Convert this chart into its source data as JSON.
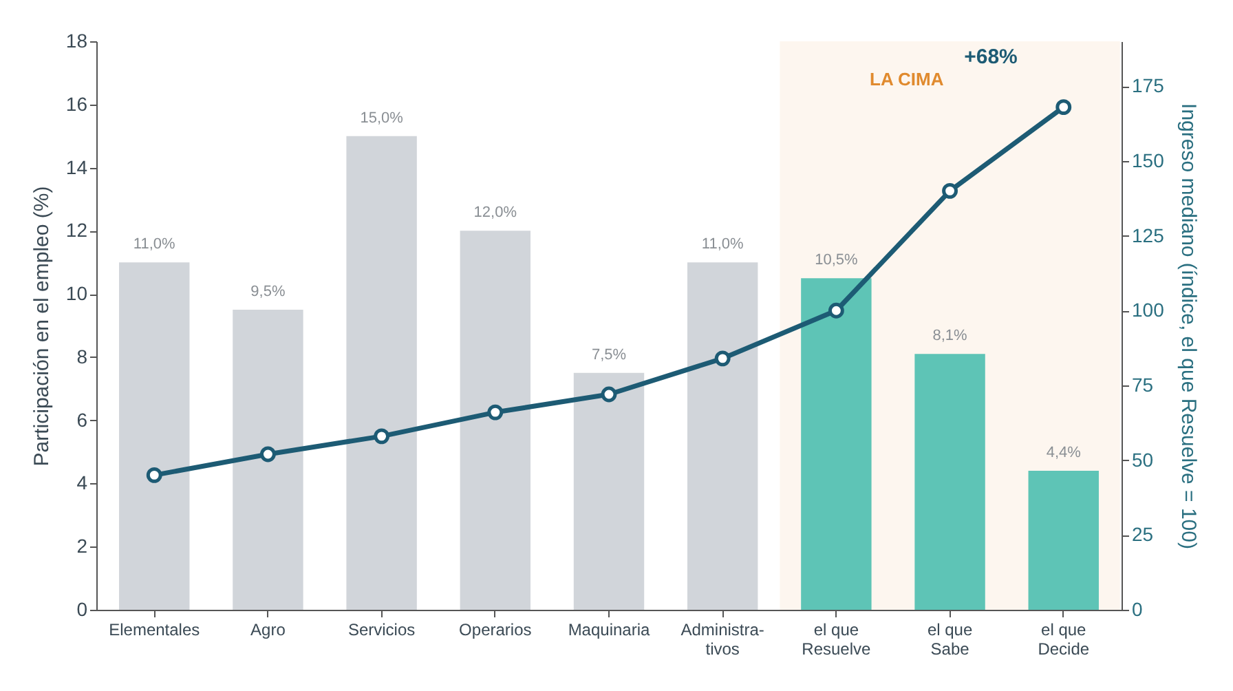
{
  "chart_data": {
    "type": "bar",
    "categories": [
      "Elementales",
      "Agro",
      "Servicios",
      "Operarios",
      "Maquinaria",
      "Administra-\ntivos",
      "el que\nResuelve",
      "el que\nSabe",
      "el que\nDecide"
    ],
    "ylabel": "Participación en el empleo (%)",
    "y2label": "Ingreso mediano (índice, el que Resuelve = 100)",
    "series": [
      {
        "values": [
          11.0,
          9.5,
          15.0,
          12.0,
          7.5,
          11.0,
          10.5,
          8.1,
          4.4
        ],
        "colors": [
          "#d1d5da",
          "#d1d5da",
          "#d1d5da",
          "#d1d5da",
          "#d1d5da",
          "#d1d5da",
          "#5ec4b6",
          "#5ec4b6",
          "#5ec4b6"
        ],
        "value_labels": [
          "11,0%",
          "9,5%",
          "15,0%",
          "12,0%",
          "7,5%",
          "11,0%",
          "10,5%",
          "8,1%",
          "4,4%"
        ]
      },
      {
        "type": "line",
        "axis": "y2",
        "color": "#1d5b74",
        "values": [
          45,
          52,
          58,
          66,
          72,
          84,
          100,
          140,
          168
        ]
      }
    ],
    "ylim": [
      0,
      18
    ],
    "yticks": [
      0,
      2,
      4,
      6,
      8,
      10,
      12,
      14,
      16,
      18
    ],
    "y2lim": [
      0,
      190
    ],
    "y2ticks": [
      0,
      25,
      50,
      75,
      100,
      125,
      150,
      175
    ],
    "bands": [
      {
        "axis": "x",
        "from": "el que\nResuelve",
        "to": "el que\nDecide",
        "label": "LA CIMA",
        "color": "#fdf6ef"
      }
    ],
    "annotations": [
      "+68%"
    ],
    "marker": "circle",
    "line_style": "solid"
  }
}
